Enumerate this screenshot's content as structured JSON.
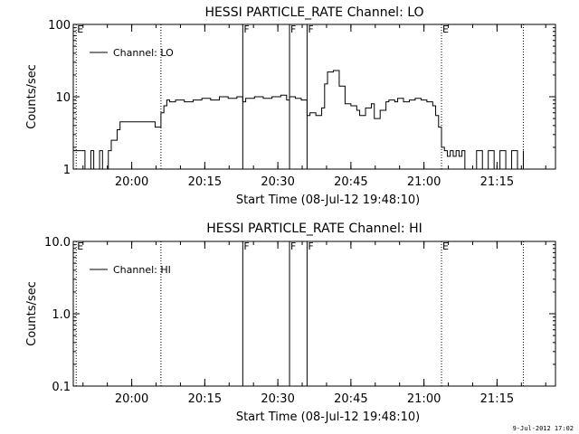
{
  "timestamp": "9-Jul-2012 17:02",
  "chart_data": [
    {
      "type": "line",
      "title": "HESSI PARTICLE_RATE Channel: LO",
      "ylabel": "Counts/sec",
      "xlabel": "Start Time (08-Jul-12 19:48:10)",
      "yscale": "log",
      "ylim": [
        1,
        100
      ],
      "ytick_values": [
        1,
        10,
        100
      ],
      "ytick_labels": [
        "1",
        "10",
        "100"
      ],
      "xlim": [
        19.8,
        21.45
      ],
      "xtick_values": [
        20.0,
        20.25,
        20.5,
        20.75,
        21.0,
        21.25
      ],
      "xtick_labels": [
        "20:00",
        "20:15",
        "20:30",
        "20:45",
        "21:00",
        "21:15"
      ],
      "legend": {
        "label": "Channel: LO",
        "position": "top-left"
      },
      "markers": [
        {
          "x": 19.81,
          "label": "E",
          "style": "dotted"
        },
        {
          "x": 20.1,
          "label": "",
          "style": "dotted"
        },
        {
          "x": 20.38,
          "label": "F",
          "style": "solid"
        },
        {
          "x": 20.54,
          "label": "F",
          "style": "solid"
        },
        {
          "x": 20.6,
          "label": "F",
          "style": "solid"
        },
        {
          "x": 21.06,
          "label": "E",
          "style": "dotted"
        },
        {
          "x": 21.34,
          "label": "",
          "style": "dotted"
        }
      ],
      "series": [
        {
          "name": "Channel: LO",
          "x": [
            19.8,
            19.83,
            19.84,
            19.86,
            19.87,
            19.89,
            19.9,
            19.92,
            19.93,
            19.95,
            19.96,
            19.98,
            20.0,
            20.02,
            20.04,
            20.06,
            20.08,
            20.1,
            20.11,
            20.12,
            20.13,
            20.15,
            20.18,
            20.21,
            20.24,
            20.27,
            20.3,
            20.33,
            20.36,
            20.38,
            20.39,
            20.42,
            20.45,
            20.48,
            20.51,
            20.53,
            20.54,
            20.56,
            20.58,
            20.6,
            20.61,
            20.63,
            20.65,
            20.66,
            20.67,
            20.69,
            20.71,
            20.73,
            20.75,
            20.77,
            20.78,
            20.8,
            20.82,
            20.83,
            20.85,
            20.87,
            20.88,
            20.9,
            20.91,
            20.93,
            20.95,
            20.97,
            20.99,
            21.01,
            21.03,
            21.04,
            21.05,
            21.06,
            21.07,
            21.08,
            21.09,
            21.1,
            21.11,
            21.12,
            21.13,
            21.14,
            21.16,
            21.18,
            21.2,
            21.22,
            21.24,
            21.26,
            21.28,
            21.3,
            21.32,
            21.34
          ],
          "y": [
            1.8,
            1.8,
            1.0,
            1.8,
            1.0,
            1.8,
            1.0,
            1.8,
            2.5,
            3.5,
            4.5,
            4.5,
            4.5,
            4.5,
            4.5,
            4.5,
            3.8,
            6.0,
            7.5,
            9.0,
            8.5,
            9.0,
            8.5,
            9.0,
            9.5,
            9.0,
            10.0,
            9.5,
            10.0,
            8.5,
            9.5,
            10.0,
            9.5,
            10.0,
            10.5,
            9.0,
            10.0,
            9.5,
            9.0,
            5.5,
            6.0,
            5.5,
            7.0,
            15.0,
            22.0,
            23.0,
            14.0,
            8.0,
            7.5,
            6.5,
            5.5,
            7.0,
            8.0,
            5.0,
            6.5,
            8.5,
            9.0,
            8.5,
            9.5,
            8.5,
            9.0,
            9.5,
            9.0,
            8.5,
            7.5,
            5.5,
            3.8,
            2.0,
            1.8,
            1.5,
            1.8,
            1.5,
            1.8,
            1.5,
            1.8,
            1.0,
            1.0,
            1.8,
            1.0,
            1.8,
            1.0,
            1.8,
            1.0,
            1.8,
            1.0,
            1.8
          ]
        }
      ]
    },
    {
      "type": "line",
      "title": "HESSI PARTICLE_RATE Channel: HI",
      "ylabel": "Counts/sec",
      "xlabel": "Start Time (08-Jul-12 19:48:10)",
      "yscale": "log",
      "ylim": [
        0.1,
        10
      ],
      "ytick_values": [
        0.1,
        1,
        10
      ],
      "ytick_labels": [
        "0.1",
        "1.0",
        "10.0"
      ],
      "xlim": [
        19.8,
        21.45
      ],
      "xtick_values": [
        20.0,
        20.25,
        20.5,
        20.75,
        21.0,
        21.25
      ],
      "xtick_labels": [
        "20:00",
        "20:15",
        "20:30",
        "20:45",
        "21:00",
        "21:15"
      ],
      "legend": {
        "label": "Channel: HI",
        "position": "top-left"
      },
      "markers": [
        {
          "x": 19.81,
          "label": "E",
          "style": "dotted"
        },
        {
          "x": 20.1,
          "label": "",
          "style": "dotted"
        },
        {
          "x": 20.38,
          "label": "F",
          "style": "solid"
        },
        {
          "x": 20.54,
          "label": "F",
          "style": "solid"
        },
        {
          "x": 20.6,
          "label": "F",
          "style": "solid"
        },
        {
          "x": 21.06,
          "label": "E",
          "style": "dotted"
        },
        {
          "x": 21.34,
          "label": "",
          "style": "dotted"
        }
      ],
      "series": [
        {
          "name": "Channel: HI",
          "x": [],
          "y": []
        }
      ]
    }
  ]
}
